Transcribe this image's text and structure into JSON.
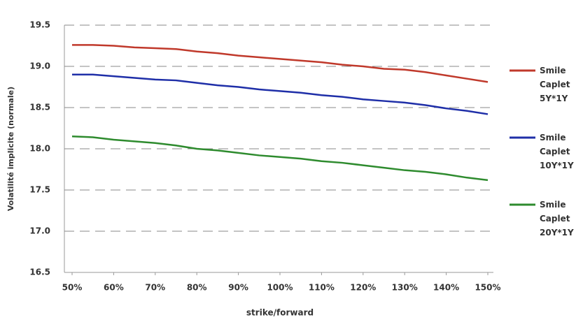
{
  "chart_data": {
    "type": "line",
    "x_label": "strike/forward",
    "y_label": "Volatilité implicite (normale)",
    "x": [
      50,
      55,
      60,
      65,
      70,
      75,
      80,
      85,
      90,
      95,
      100,
      105,
      110,
      115,
      120,
      125,
      130,
      135,
      140,
      145,
      150
    ],
    "series": [
      {
        "name": "Smile Caplet 5Y*1Y",
        "color": "#c0392b",
        "values": [
          19.26,
          19.26,
          19.25,
          19.23,
          19.22,
          19.21,
          19.18,
          19.16,
          19.13,
          19.11,
          19.09,
          19.07,
          19.05,
          19.02,
          19.0,
          18.97,
          18.96,
          18.93,
          18.89,
          18.85,
          18.81
        ]
      },
      {
        "name": "Smile Caplet 10Y*1Y",
        "color": "#1f2fa8",
        "values": [
          18.9,
          18.9,
          18.88,
          18.86,
          18.84,
          18.83,
          18.8,
          18.77,
          18.75,
          18.72,
          18.7,
          18.68,
          18.65,
          18.63,
          18.6,
          18.58,
          18.56,
          18.53,
          18.49,
          18.46,
          18.42
        ]
      },
      {
        "name": "Smile Caplet 20Y*1Y",
        "color": "#2e8b2e",
        "values": [
          18.15,
          18.14,
          18.11,
          18.09,
          18.07,
          18.04,
          18.0,
          17.98,
          17.95,
          17.92,
          17.9,
          17.88,
          17.85,
          17.83,
          17.8,
          17.77,
          17.74,
          17.72,
          17.69,
          17.65,
          17.62
        ]
      }
    ],
    "xlim": [
      50,
      150
    ],
    "xticks": [
      {
        "value": 50,
        "label": "50%"
      },
      {
        "value": 60,
        "label": "60%"
      },
      {
        "value": 70,
        "label": "70%"
      },
      {
        "value": 80,
        "label": "80%"
      },
      {
        "value": 90,
        "label": "90%"
      },
      {
        "value": 100,
        "label": "100%"
      },
      {
        "value": 110,
        "label": "110%"
      },
      {
        "value": 120,
        "label": "120%"
      },
      {
        "value": 130,
        "label": "130%"
      },
      {
        "value": 140,
        "label": "140%"
      },
      {
        "value": 150,
        "label": "150%"
      }
    ],
    "ylim": [
      16.5,
      19.5
    ],
    "yticks": [
      16.5,
      {
        "value": 17,
        "label": "17.0"
      },
      17.5,
      {
        "value": 18,
        "label": "18.0"
      },
      18.5,
      {
        "value": 19,
        "label": "19.0"
      },
      19.5
    ],
    "grid": true
  }
}
